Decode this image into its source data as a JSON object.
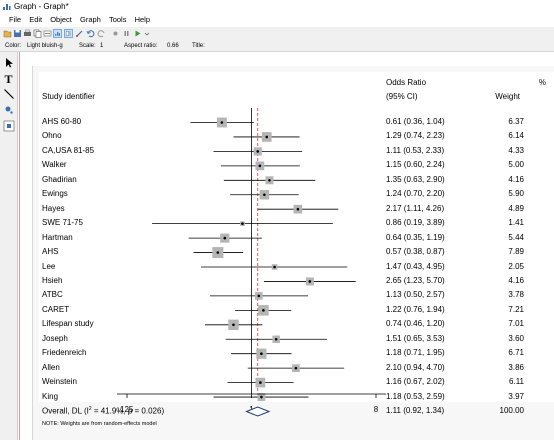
{
  "window": {
    "title": "Graph - Graph*"
  },
  "menu": [
    "File",
    "Edit",
    "Object",
    "Graph",
    "Tools",
    "Help"
  ],
  "properties": {
    "color_label": "Color:",
    "color_value": "Light bluish-g",
    "scale_label": "Scale:",
    "scale_value": "1",
    "aspect_label": "Aspect ratio:",
    "aspect_value": "0.66",
    "title_label": "Title:"
  },
  "header": {
    "study": "Study identifier",
    "or_line1": "Odds Ratio",
    "or_line2": "(95% CI)",
    "pct_line1": "%",
    "pct_line2": "Weight"
  },
  "rows": [
    {
      "study": "AHS 60-80",
      "or_text": "0.61 (0.36, 1.04)",
      "weight_text": "6.37"
    },
    {
      "study": "Ohno",
      "or_text": "1.29 (0.74, 2.23)",
      "weight_text": "6.14"
    },
    {
      "study": "CA,USA 81-85",
      "or_text": "1.11 (0.53, 2.33)",
      "weight_text": "4.33"
    },
    {
      "study": "Walker",
      "or_text": "1.15 (0.60, 2.24)",
      "weight_text": "5.00"
    },
    {
      "study": "Ghadirian",
      "or_text": "1.35 (0.63, 2.90)",
      "weight_text": "4.16"
    },
    {
      "study": "Ewings",
      "or_text": "1.24 (0.70, 2.20)",
      "weight_text": "5.90"
    },
    {
      "study": "Hayes",
      "or_text": "2.17 (1.11, 4.26)",
      "weight_text": "4.89"
    },
    {
      "study": "SWE 71-75",
      "or_text": "0.86 (0.19, 3.89)",
      "weight_text": "1.41"
    },
    {
      "study": "Hartman",
      "or_text": "0.64 (0.35, 1.19)",
      "weight_text": "5.44"
    },
    {
      "study": "AHS",
      "or_text": "0.57 (0.38, 0.87)",
      "weight_text": "7.89"
    },
    {
      "study": "Lee",
      "or_text": "1.47 (0.43, 4.95)",
      "weight_text": "2.05"
    },
    {
      "study": "Hsieh",
      "or_text": "2.65 (1.23, 5.70)",
      "weight_text": "4.16"
    },
    {
      "study": "ATBC",
      "or_text": "1.13 (0.50, 2.57)",
      "weight_text": "3.78"
    },
    {
      "study": "CARET",
      "or_text": "1.22 (0.76, 1.94)",
      "weight_text": "7.21"
    },
    {
      "study": "Lifespan study",
      "or_text": "0.74 (0.46, 1.20)",
      "weight_text": "7.01"
    },
    {
      "study": "Joseph",
      "or_text": "1.51 (0.65, 3.53)",
      "weight_text": "3.60"
    },
    {
      "study": "Friedenreich",
      "or_text": "1.18 (0.71, 1.95)",
      "weight_text": "6.71"
    },
    {
      "study": "Allen",
      "or_text": "2.10 (0.94, 4.70)",
      "weight_text": "3.86"
    },
    {
      "study": "Weinstein",
      "or_text": "1.16 (0.67, 2.02)",
      "weight_text": "6.11"
    },
    {
      "study": "King",
      "or_text": "1.18 (0.53, 2.59)",
      "weight_text": "3.97"
    }
  ],
  "overall": {
    "label_pre": "Overall, DL (I",
    "label_sup": "2",
    "label_post": " = 41.9%, p = 0.026)",
    "or_text": "1.11 (0.92, 1.34)",
    "weight_text": "100.00"
  },
  "axis": {
    "ticks": [
      ".125",
      "1",
      "8"
    ]
  },
  "note": "NOTE: Weights are from random-effects model",
  "chart_data": {
    "type": "forest",
    "scale": "log",
    "xlim": [
      0.125,
      8
    ],
    "xticks": [
      0.125,
      1,
      8
    ],
    "null_line": 1,
    "overall_line": 1.11,
    "studies": [
      {
        "name": "AHS 60-80",
        "or": 0.61,
        "lo": 0.36,
        "hi": 1.04,
        "weight": 6.37
      },
      {
        "name": "Ohno",
        "or": 1.29,
        "lo": 0.74,
        "hi": 2.23,
        "weight": 6.14
      },
      {
        "name": "CA,USA 81-85",
        "or": 1.11,
        "lo": 0.53,
        "hi": 2.33,
        "weight": 4.33
      },
      {
        "name": "Walker",
        "or": 1.15,
        "lo": 0.6,
        "hi": 2.24,
        "weight": 5.0
      },
      {
        "name": "Ghadirian",
        "or": 1.35,
        "lo": 0.63,
        "hi": 2.9,
        "weight": 4.16
      },
      {
        "name": "Ewings",
        "or": 1.24,
        "lo": 0.7,
        "hi": 2.2,
        "weight": 5.9
      },
      {
        "name": "Hayes",
        "or": 2.17,
        "lo": 1.11,
        "hi": 4.26,
        "weight": 4.89
      },
      {
        "name": "SWE 71-75",
        "or": 0.86,
        "lo": 0.19,
        "hi": 3.89,
        "weight": 1.41
      },
      {
        "name": "Hartman",
        "or": 0.64,
        "lo": 0.35,
        "hi": 1.19,
        "weight": 5.44
      },
      {
        "name": "AHS",
        "or": 0.57,
        "lo": 0.38,
        "hi": 0.87,
        "weight": 7.89
      },
      {
        "name": "Lee",
        "or": 1.47,
        "lo": 0.43,
        "hi": 4.95,
        "weight": 2.05
      },
      {
        "name": "Hsieh",
        "or": 2.65,
        "lo": 1.23,
        "hi": 5.7,
        "weight": 4.16
      },
      {
        "name": "ATBC",
        "or": 1.13,
        "lo": 0.5,
        "hi": 2.57,
        "weight": 3.78
      },
      {
        "name": "CARET",
        "or": 1.22,
        "lo": 0.76,
        "hi": 1.94,
        "weight": 7.21
      },
      {
        "name": "Lifespan study",
        "or": 0.74,
        "lo": 0.46,
        "hi": 1.2,
        "weight": 7.01
      },
      {
        "name": "Joseph",
        "or": 1.51,
        "lo": 0.65,
        "hi": 3.53,
        "weight": 3.6
      },
      {
        "name": "Friedenreich",
        "or": 1.18,
        "lo": 0.71,
        "hi": 1.95,
        "weight": 6.71
      },
      {
        "name": "Allen",
        "or": 2.1,
        "lo": 0.94,
        "hi": 4.7,
        "weight": 3.86
      },
      {
        "name": "Weinstein",
        "or": 1.16,
        "lo": 0.67,
        "hi": 2.02,
        "weight": 6.11
      },
      {
        "name": "King",
        "or": 1.18,
        "lo": 0.53,
        "hi": 2.59,
        "weight": 3.97
      }
    ],
    "overall": {
      "or": 1.11,
      "lo": 0.92,
      "hi": 1.34,
      "weight": 100.0
    },
    "colors": {
      "null_line": "#000000",
      "overall_line": "#cc3333",
      "box": "#b5b5b5",
      "diamond": "#1f3a7a"
    }
  }
}
